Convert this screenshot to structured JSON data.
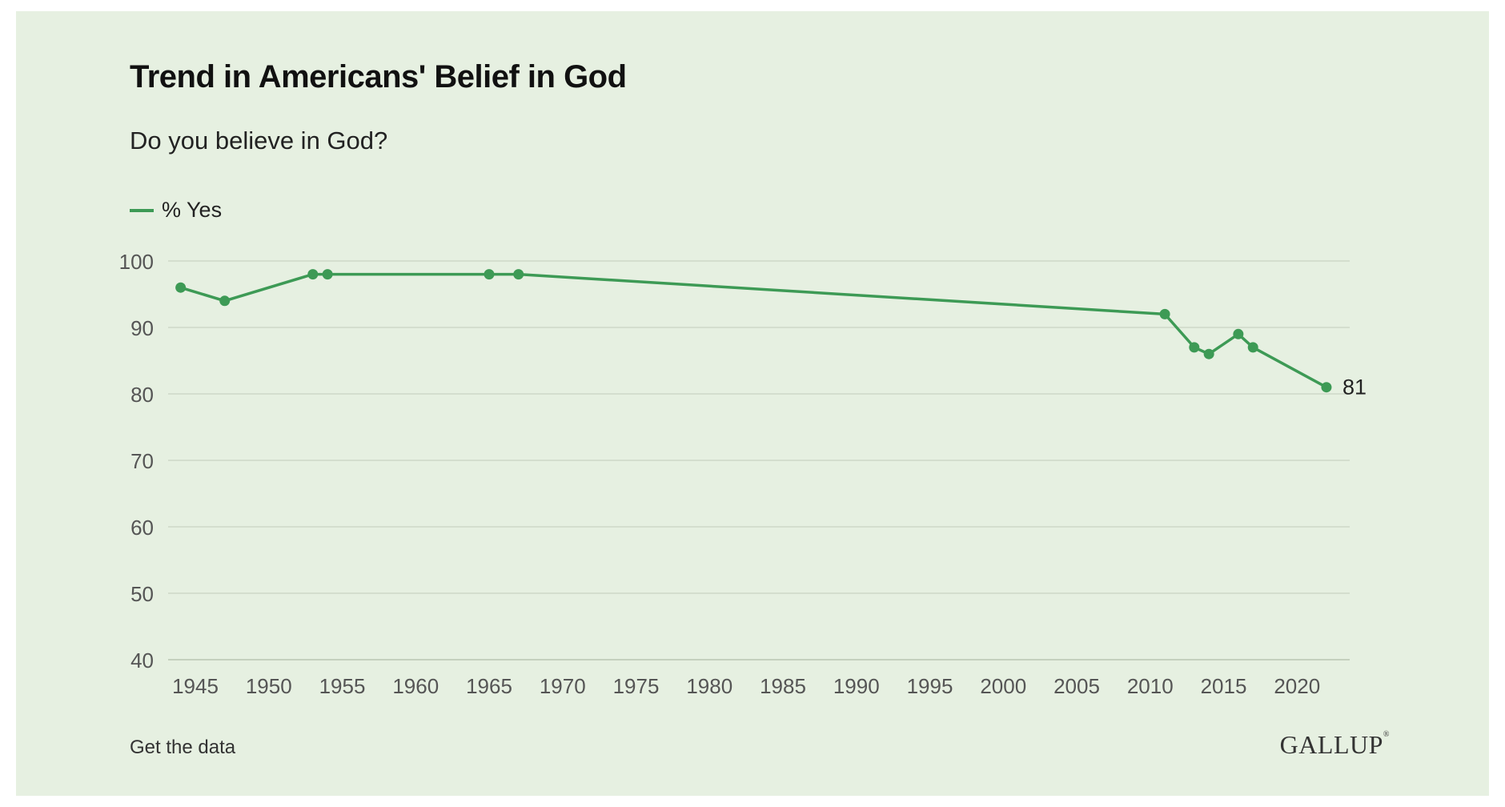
{
  "header": {
    "title": "Trend in Americans' Belief in God",
    "subtitle": "Do you believe in God?"
  },
  "legend": {
    "label": "% Yes",
    "color": "#3d9a55"
  },
  "footer": {
    "link_label": "Get the data",
    "logo": "GALLUP"
  },
  "chart_data": {
    "type": "line",
    "series": [
      {
        "name": "% Yes",
        "color": "#3d9a55",
        "points": [
          {
            "x": 1944,
            "y": 96
          },
          {
            "x": 1947,
            "y": 94
          },
          {
            "x": 1953,
            "y": 98
          },
          {
            "x": 1954,
            "y": 98
          },
          {
            "x": 1965,
            "y": 98
          },
          {
            "x": 1967,
            "y": 98
          },
          {
            "x": 2011,
            "y": 92
          },
          {
            "x": 2013,
            "y": 87
          },
          {
            "x": 2014,
            "y": 86
          },
          {
            "x": 2016,
            "y": 89
          },
          {
            "x": 2017,
            "y": 87
          },
          {
            "x": 2022,
            "y": 81
          }
        ]
      }
    ],
    "end_label": "81",
    "xticks": [
      1945,
      1950,
      1955,
      1960,
      1965,
      1970,
      1975,
      1980,
      1985,
      1990,
      1995,
      2000,
      2005,
      2010,
      2015,
      2020
    ],
    "yticks": [
      40,
      50,
      60,
      70,
      80,
      90,
      100
    ],
    "xlim": [
      1943,
      2023
    ],
    "ylim": [
      40,
      100
    ],
    "grid": true,
    "legend_position": "top-left"
  }
}
